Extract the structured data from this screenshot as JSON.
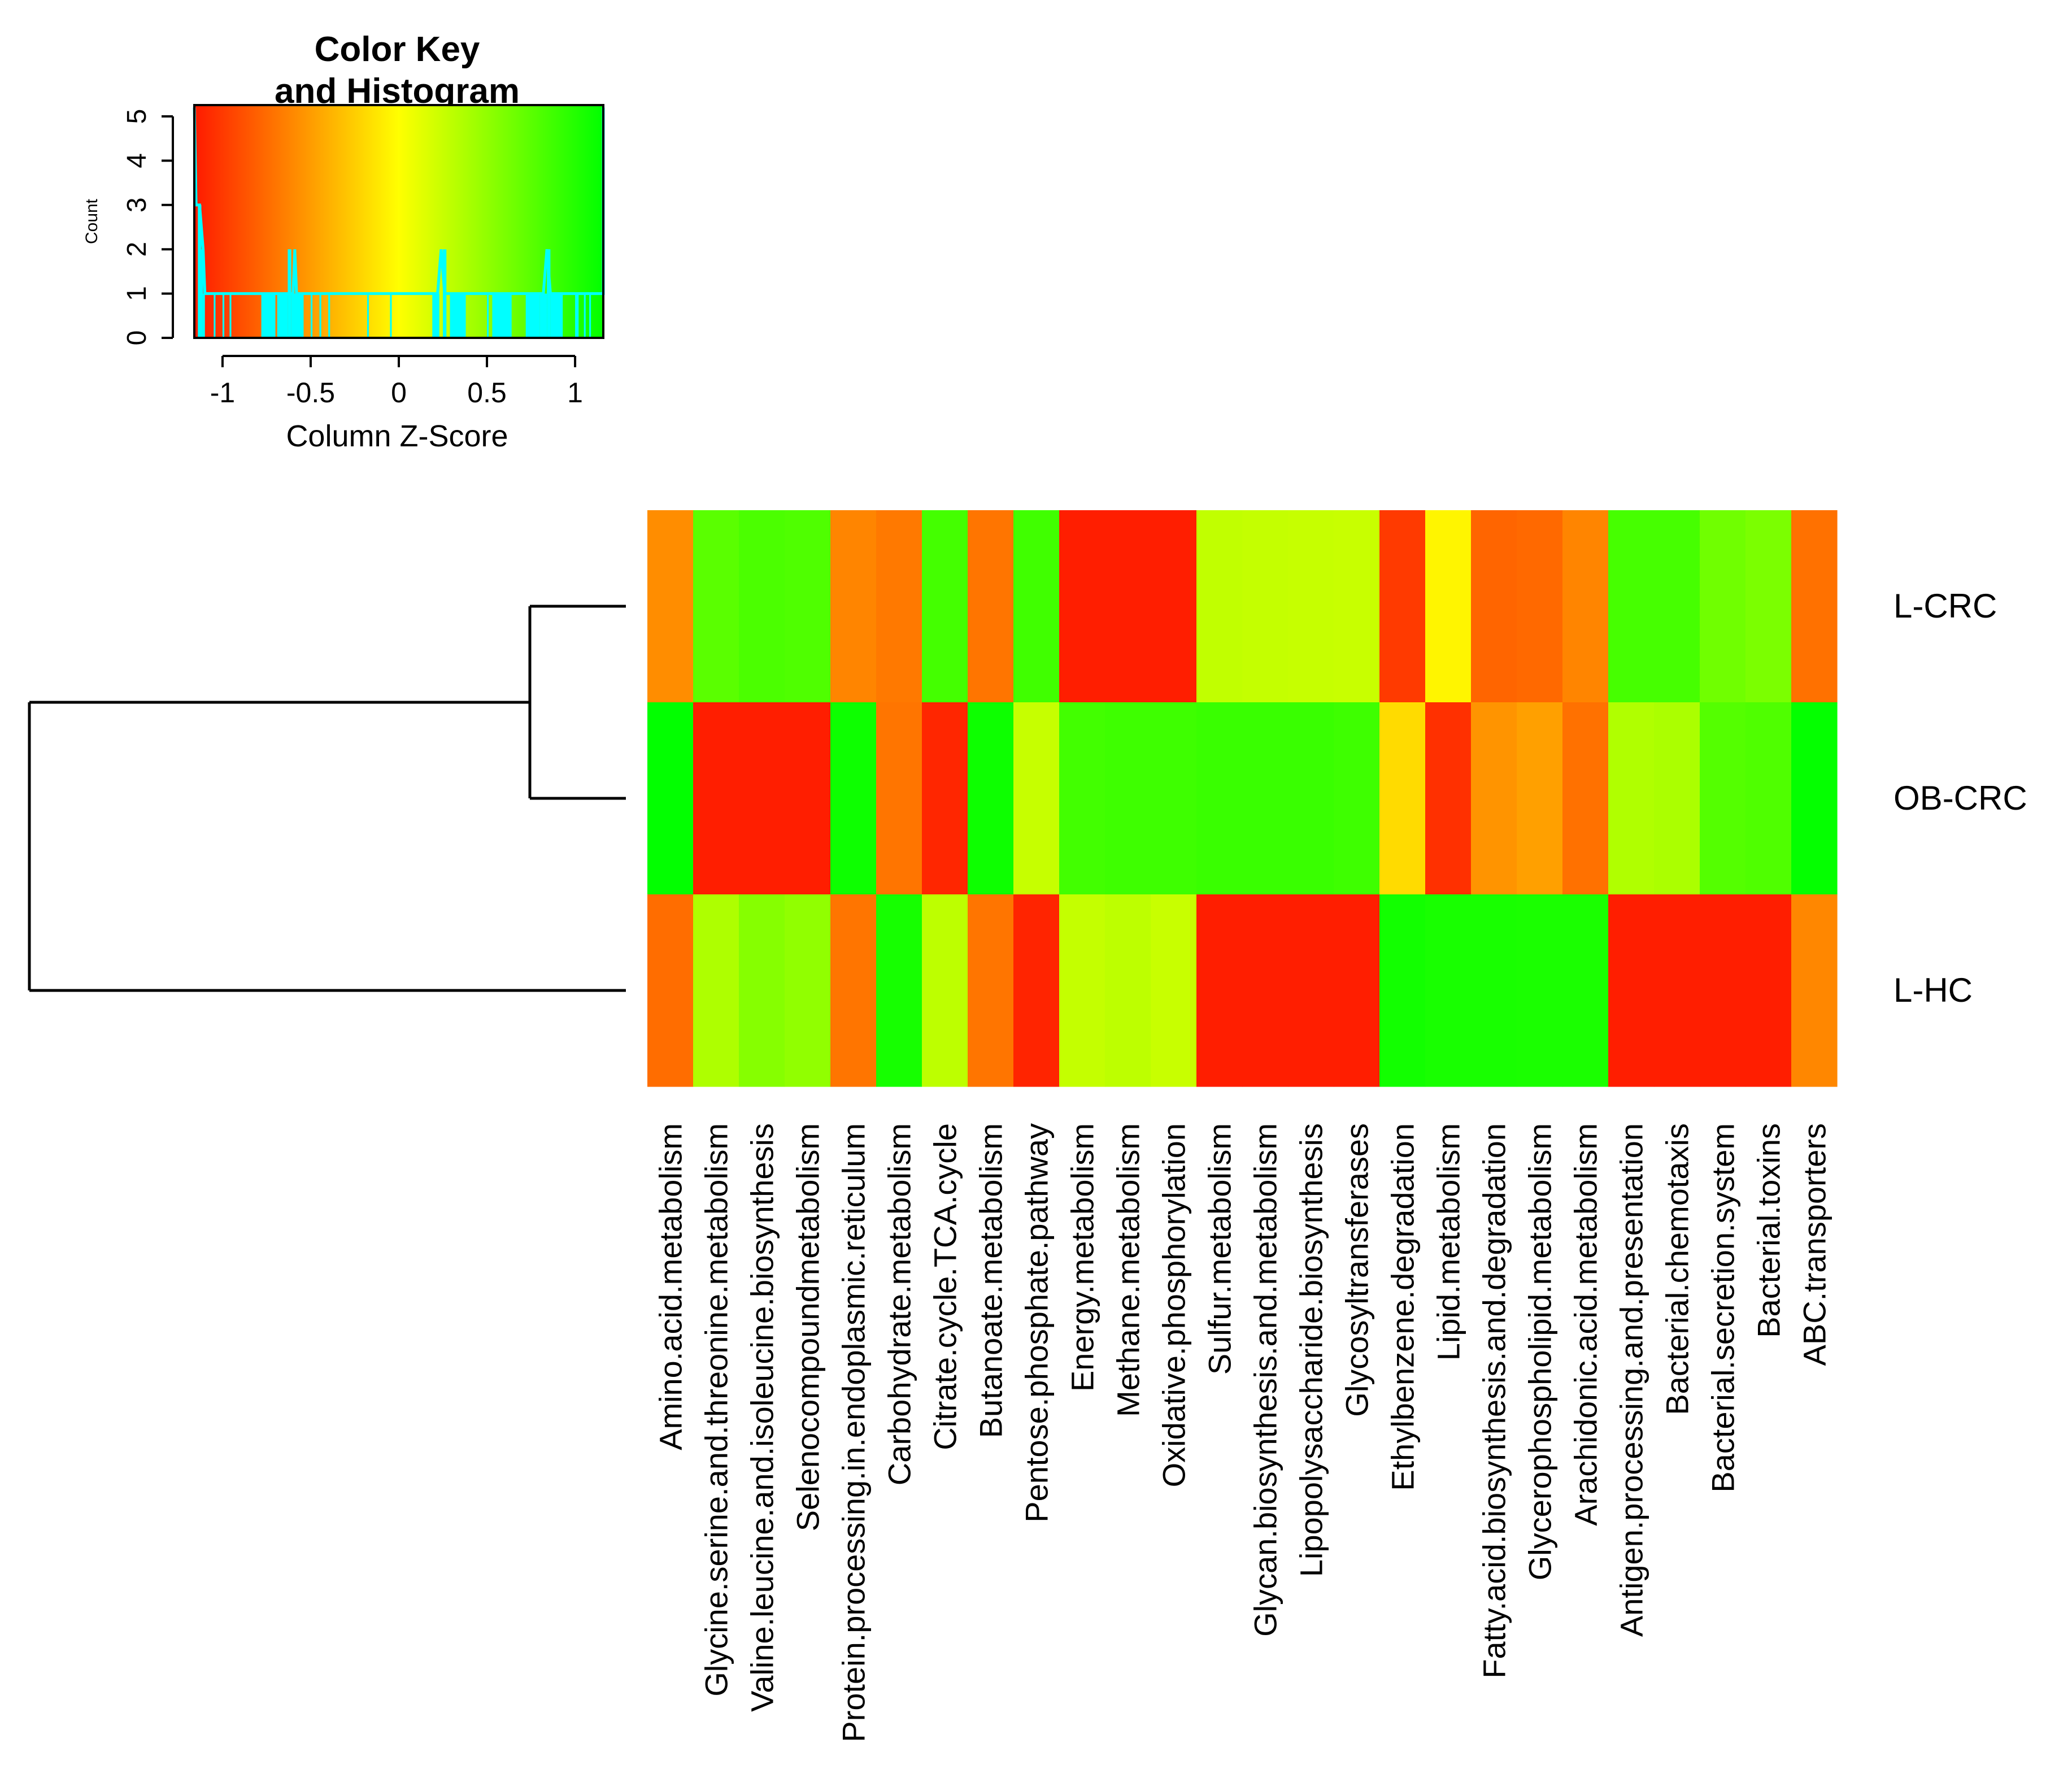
{
  "chart_data": {
    "type": "heatmap",
    "colorKey": {
      "title": [
        "Color Key",
        "and Histogram"
      ],
      "xlabel": "Column Z-Score",
      "ylabel": "Count",
      "xrange": [
        -1.16,
        1.16
      ],
      "yrange": [
        0,
        5
      ],
      "xticks": [
        {
          "v": -1,
          "label": "-1"
        },
        {
          "v": -0.5,
          "label": "-0.5"
        },
        {
          "v": 0,
          "label": "0"
        },
        {
          "v": 0.5,
          "label": "0.5"
        },
        {
          "v": 1,
          "label": "1"
        }
      ],
      "yticks": [
        {
          "v": 0,
          "label": "0"
        },
        {
          "v": 1,
          "label": "1"
        },
        {
          "v": 2,
          "label": "2"
        },
        {
          "v": 3,
          "label": "3"
        },
        {
          "v": 4,
          "label": "4"
        },
        {
          "v": 5,
          "label": "5"
        }
      ],
      "colorStops": [
        "#ff1a00",
        "#ffff00",
        "#00ff00"
      ],
      "histogramColor": "#00ffff",
      "histogram": [
        {
          "lo": -1.14,
          "hi": -1.12,
          "n": 3
        },
        {
          "lo": -1.12,
          "hi": -1.11,
          "n": 2
        },
        {
          "lo": -1.11,
          "hi": -1.1,
          "n": 1
        },
        {
          "lo": -1.05,
          "hi": -1.04,
          "n": 1
        },
        {
          "lo": -1.0,
          "hi": -0.99,
          "n": 1
        },
        {
          "lo": -0.96,
          "hi": -0.95,
          "n": 1
        },
        {
          "lo": -0.78,
          "hi": -0.7,
          "n": 1
        },
        {
          "lo": -0.69,
          "hi": -0.63,
          "n": 1
        },
        {
          "lo": -0.63,
          "hi": -0.61,
          "n": 2
        },
        {
          "lo": -0.61,
          "hi": -0.54,
          "n": 1
        },
        {
          "lo": -0.5,
          "hi": -0.49,
          "n": 1
        },
        {
          "lo": -0.45,
          "hi": -0.44,
          "n": 1
        },
        {
          "lo": -0.4,
          "hi": -0.39,
          "n": 1
        },
        {
          "lo": -0.18,
          "hi": -0.17,
          "n": 1
        },
        {
          "lo": -0.05,
          "hi": -0.04,
          "n": 1
        },
        {
          "lo": 0.19,
          "hi": 0.23,
          "n": 1
        },
        {
          "lo": 0.25,
          "hi": 0.27,
          "n": 2
        },
        {
          "lo": 0.29,
          "hi": 0.37,
          "n": 1
        },
        {
          "lo": 0.37,
          "hi": 0.38,
          "n": 1
        },
        {
          "lo": 0.5,
          "hi": 0.51,
          "n": 1
        },
        {
          "lo": 0.53,
          "hi": 0.64,
          "n": 1
        },
        {
          "lo": 0.72,
          "hi": 0.8,
          "n": 1
        },
        {
          "lo": 0.8,
          "hi": 0.84,
          "n": 1
        },
        {
          "lo": 0.84,
          "hi": 0.86,
          "n": 2
        },
        {
          "lo": 0.86,
          "hi": 0.93,
          "n": 1
        },
        {
          "lo": 1.0,
          "hi": 1.02,
          "n": 1
        },
        {
          "lo": 1.05,
          "hi": 1.06,
          "n": 1
        },
        {
          "lo": 1.08,
          "hi": 1.09,
          "n": 1
        }
      ],
      "densityLine": [
        [
          -1.16,
          5.2
        ],
        [
          -1.15,
          3.0
        ],
        [
          -1.13,
          3.0
        ],
        [
          -1.11,
          2.0
        ],
        [
          -1.1,
          1.0
        ],
        [
          -0.6,
          1.0
        ],
        [
          -0.59,
          2.0
        ],
        [
          -0.58,
          1.0
        ],
        [
          0.22,
          1.0
        ],
        [
          0.24,
          2.0
        ],
        [
          0.26,
          1.0
        ],
        [
          0.82,
          1.0
        ],
        [
          0.84,
          2.0
        ],
        [
          0.86,
          1.0
        ],
        [
          1.16,
          1.0
        ],
        [
          1.16,
          5.2
        ]
      ]
    },
    "rows": [
      "L-CRC",
      "OB-CRC",
      "L-HC"
    ],
    "columns": [
      "Amino.acid.metabolism",
      "Glycine.serine.and.threonine.metabolism",
      "Valine.leucine.and.isoleucine.biosynthesis",
      "Selenocompoundmetabolism",
      "Protein.processing.in.endoplasmic.reticulum",
      "Carbohydrate.metabolism",
      "Citrate.cycle.TCA.cycle",
      "Butanoate.metabolism",
      "Pentose.phosphate.pathway",
      "Energy.metabolism",
      "Methane.metabolism",
      "Oxidative.phosphorylation",
      "Sulfur.metabolism",
      "Glycan.biosynthesis.and.metabolism",
      "Lipopolysaccharide.biosynthesis",
      "Glycosyltransferases",
      "Ethylbenzene.degradation",
      "Lipid.metabolism",
      "Fatty.acid.biosynthesis.and.degradation",
      "Glycerophospholipid.metabolism",
      "Arachidonic.acid.metabolism",
      "Antigen.processing.and.presentation",
      "Bacterial.chemotaxis",
      "Bacterial.secretion.system",
      "Bacterial.toxins",
      "ABC.transporters"
    ],
    "values": [
      [
        -0.58,
        0.75,
        0.82,
        0.8,
        -0.62,
        -0.68,
        0.85,
        -0.7,
        0.87,
        -1.14,
        -1.14,
        -1.14,
        0.28,
        0.27,
        0.26,
        0.25,
        -1.0,
        -0.05,
        -0.78,
        -0.76,
        -0.62,
        0.84,
        0.84,
        0.65,
        0.6,
        -0.72
      ],
      [
        1.15,
        -1.14,
        -1.14,
        -1.14,
        1.1,
        -0.7,
        -1.1,
        1.1,
        0.26,
        0.86,
        0.88,
        0.88,
        0.9,
        0.9,
        0.9,
        0.88,
        -0.18,
        -1.05,
        -0.54,
        -0.48,
        -0.72,
        0.36,
        0.38,
        0.78,
        0.8,
        1.14
      ],
      [
        -0.74,
        0.37,
        0.55,
        0.5,
        -0.7,
        1.06,
        0.3,
        -0.7,
        -1.11,
        0.27,
        0.3,
        0.25,
        -1.14,
        -1.14,
        -1.14,
        -1.14,
        1.08,
        1.05,
        1.05,
        1.04,
        1.04,
        -1.14,
        -1.14,
        -1.14,
        -1.14,
        -0.61
      ]
    ],
    "colClusters": [
      [
        0,
        1,
        2,
        3,
        4,
        5,
        6,
        7,
        8,
        9,
        10,
        11,
        12,
        13,
        14,
        15,
        16,
        17,
        18,
        19,
        20,
        21,
        22,
        23,
        24,
        25
      ]
    ],
    "dendrogram": {
      "merges": [
        {
          "left": "L-CRC",
          "right": "OB-CRC",
          "height": 1.0
        },
        {
          "left": "L-CRC+OB-CRC",
          "right": "L-HC",
          "height": 4.0
        }
      ]
    }
  }
}
